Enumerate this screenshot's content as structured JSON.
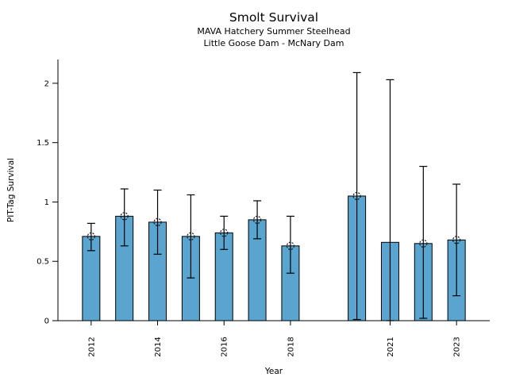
{
  "chart_data": {
    "type": "bar",
    "title": "Smolt Survival",
    "subtitle1": "MAVA Hatchery Summer Steelhead",
    "subtitle2": "Little Goose Dam - McNary Dam",
    "xlabel": "Year",
    "ylabel": "PIT-Tag Survival",
    "xlim": [
      2011,
      2024
    ],
    "ylim": [
      0,
      2.2
    ],
    "yticks": [
      {
        "value": 0,
        "label": "0"
      },
      {
        "value": 0.5,
        "label": "0.5"
      },
      {
        "value": 1,
        "label": "1"
      },
      {
        "value": 1.5,
        "label": "1.5"
      },
      {
        "value": 2,
        "label": "2"
      }
    ],
    "xticks": [
      {
        "value": 2012,
        "label": "2012"
      },
      {
        "value": 2014,
        "label": "2014"
      },
      {
        "value": 2016,
        "label": "2016"
      },
      {
        "value": 2018,
        "label": "2018"
      },
      {
        "value": 2021,
        "label": "2021"
      },
      {
        "value": 2023,
        "label": "2023"
      }
    ],
    "points": [
      {
        "year": 2012,
        "value": 0.71,
        "err_low": 0.59,
        "err_high": 0.82,
        "marker": true
      },
      {
        "year": 2013,
        "value": 0.88,
        "err_low": 0.63,
        "err_high": 1.11,
        "marker": true
      },
      {
        "year": 2014,
        "value": 0.83,
        "err_low": 0.56,
        "err_high": 1.1,
        "marker": true
      },
      {
        "year": 2015,
        "value": 0.71,
        "err_low": 0.36,
        "err_high": 1.06,
        "marker": true
      },
      {
        "year": 2016,
        "value": 0.74,
        "err_low": 0.6,
        "err_high": 0.88,
        "marker": true
      },
      {
        "year": 2017,
        "value": 0.85,
        "err_low": 0.69,
        "err_high": 1.01,
        "marker": true
      },
      {
        "year": 2018,
        "value": 0.63,
        "err_low": 0.4,
        "err_high": 0.88,
        "marker": true
      },
      {
        "year": 2020,
        "value": 1.05,
        "err_low": 0.01,
        "err_high": 2.09,
        "marker": true
      },
      {
        "year": 2021,
        "value": 0.66,
        "err_low": 0.0,
        "err_high": 2.03,
        "marker": false
      },
      {
        "year": 2022,
        "value": 0.65,
        "err_low": 0.02,
        "err_high": 1.3,
        "marker": true
      },
      {
        "year": 2023,
        "value": 0.68,
        "err_low": 0.21,
        "err_high": 1.15,
        "marker": true
      }
    ],
    "bar_color": "#5AA5CF",
    "bar_edge_color": "#000000",
    "errorbar_color": "#000000",
    "marker_edge_color": "#1a1a1a",
    "axis_color": "#000000",
    "background_color": "#ffffff"
  }
}
